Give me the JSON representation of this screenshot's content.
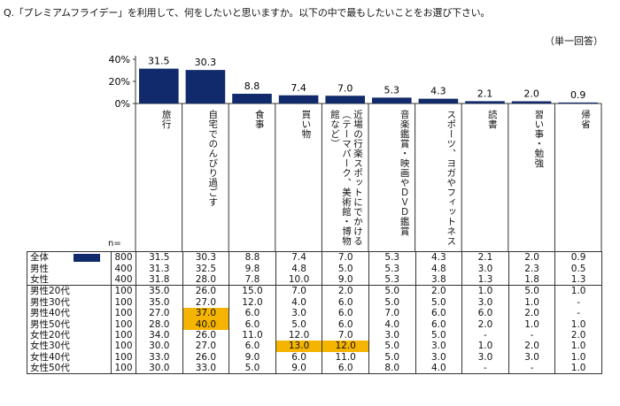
{
  "question": "Q.「プレミアムフライデー」を利用して、何をしたいと思いますか。以下の中で最もしたいことをお選び下さい。",
  "note": "（単一回答）",
  "n_label": "n=",
  "colors": {
    "bar": "#102a6b",
    "highlight": "#f5b400"
  },
  "chart_data": {
    "type": "bar",
    "categories": [
      "旅行",
      "自宅でのんびり過ごす",
      "食事",
      "買い物",
      "近場の行楽スポットにでかける（テーマパーク、美術館・博物館など）",
      "音楽鑑賞・映画やDVD鑑賞",
      "スポーツ、ヨガやフィットネス",
      "読書",
      "習い事・勉強",
      "帰省"
    ],
    "values": [
      31.5,
      30.3,
      8.8,
      7.4,
      7.0,
      5.3,
      4.3,
      2.1,
      2.0,
      0.9
    ],
    "yticks": [
      "40%",
      "20%",
      "0%"
    ],
    "ylim": [
      0,
      40
    ]
  },
  "column_labels": [
    "旅行",
    "自宅でのんびり過ごす",
    "食事",
    "買い物",
    "近場の行楽スポットにでかける（テーマパーク、美術館・博物館など）",
    "音楽鑑賞・映画やＤＶＤ鑑賞",
    "スポーツ、ヨガやフィットネス",
    "読書",
    "習い事・勉強",
    "帰省"
  ],
  "rows": [
    {
      "label": "全体",
      "n": "800",
      "values": [
        "31.5",
        "30.3",
        "8.8",
        "7.4",
        "7.0",
        "5.3",
        "4.3",
        "2.1",
        "2.0",
        "0.9"
      ],
      "marker": true
    },
    {
      "label": "男性",
      "n": "400",
      "values": [
        "31.3",
        "32.5",
        "9.8",
        "4.8",
        "5.0",
        "5.3",
        "4.8",
        "3.0",
        "2.3",
        "0.5"
      ]
    },
    {
      "label": "女性",
      "n": "400",
      "values": [
        "31.8",
        "28.0",
        "7.8",
        "10.0",
        "9.0",
        "5.3",
        "3.8",
        "1.3",
        "1.8",
        "1.3"
      ]
    },
    {
      "label": "男性20代",
      "n": "100",
      "values": [
        "35.0",
        "26.0",
        "15.0",
        "7.0",
        "2.0",
        "5.0",
        "2.0",
        "1.0",
        "5.0",
        "1.0"
      ]
    },
    {
      "label": "男性30代",
      "n": "100",
      "values": [
        "35.0",
        "27.0",
        "12.0",
        "4.0",
        "6.0",
        "5.0",
        "5.0",
        "3.0",
        "1.0",
        "-"
      ]
    },
    {
      "label": "男性40代",
      "n": "100",
      "values": [
        "27.0",
        "37.0",
        "6.0",
        "3.0",
        "6.0",
        "7.0",
        "6.0",
        "6.0",
        "2.0",
        "-"
      ]
    },
    {
      "label": "男性50代",
      "n": "100",
      "values": [
        "28.0",
        "40.0",
        "6.0",
        "5.0",
        "6.0",
        "4.0",
        "6.0",
        "2.0",
        "1.0",
        "1.0"
      ]
    },
    {
      "label": "女性20代",
      "n": "100",
      "values": [
        "34.0",
        "26.0",
        "11.0",
        "12.0",
        "7.0",
        "3.0",
        "5.0",
        "-",
        "-",
        "2.0"
      ]
    },
    {
      "label": "女性30代",
      "n": "100",
      "values": [
        "30.0",
        "27.0",
        "6.0",
        "13.0",
        "12.0",
        "5.0",
        "3.0",
        "1.0",
        "2.0",
        "1.0"
      ]
    },
    {
      "label": "女性40代",
      "n": "100",
      "values": [
        "33.0",
        "26.0",
        "9.0",
        "6.0",
        "11.0",
        "5.0",
        "3.0",
        "3.0",
        "3.0",
        "1.0"
      ]
    },
    {
      "label": "女性50代",
      "n": "100",
      "values": [
        "30.0",
        "33.0",
        "5.0",
        "9.0",
        "6.0",
        "8.0",
        "4.0",
        "-",
        "-",
        "1.0"
      ]
    }
  ],
  "highlights": [
    [
      5,
      1
    ],
    [
      6,
      1
    ],
    [
      8,
      3
    ],
    [
      8,
      4
    ]
  ]
}
